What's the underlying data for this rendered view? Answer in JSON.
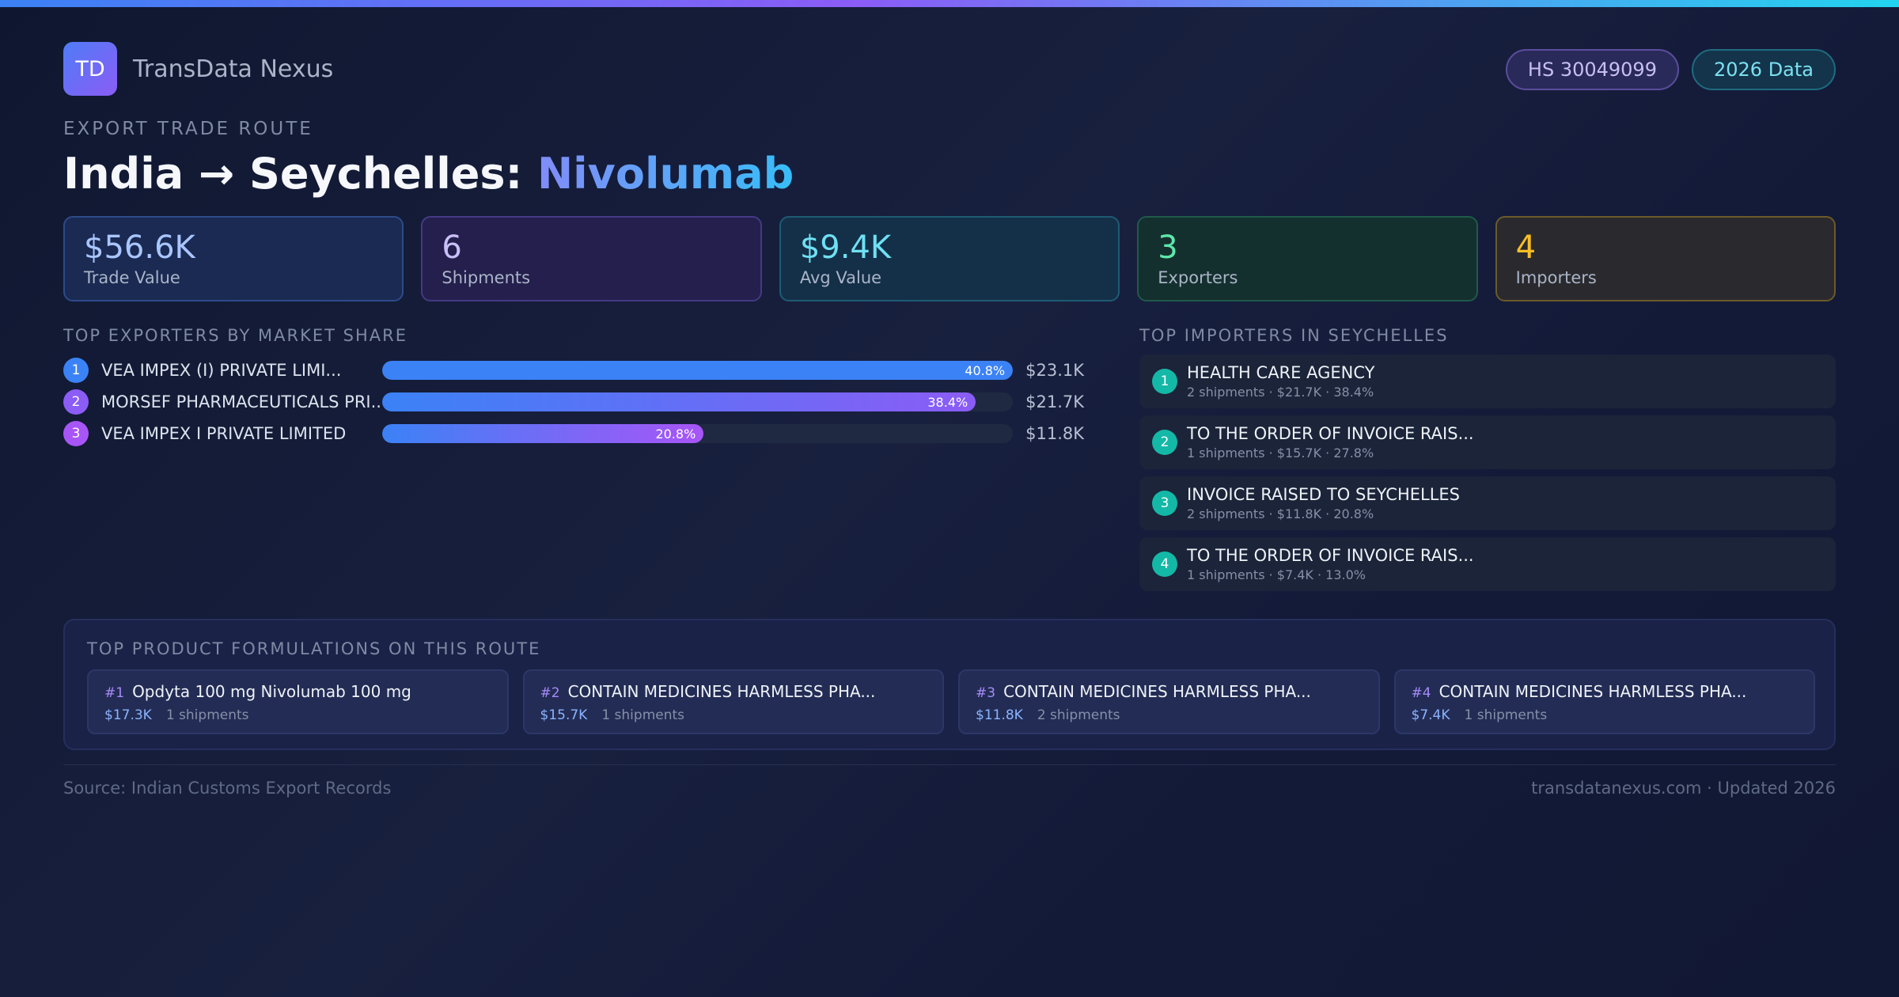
{
  "brand": {
    "logo_text": "TD",
    "name": "TransData Nexus"
  },
  "badges": {
    "hs_code": "HS 30049099",
    "year": "2026 Data"
  },
  "hero": {
    "eyebrow": "EXPORT TRADE ROUTE",
    "route": "India → Seychelles: ",
    "product": "Nivolumab"
  },
  "stats": [
    {
      "value": "$56.6K",
      "label": "Trade Value"
    },
    {
      "value": "6",
      "label": "Shipments"
    },
    {
      "value": "$9.4K",
      "label": "Avg Value"
    },
    {
      "value": "3",
      "label": "Exporters"
    },
    {
      "value": "4",
      "label": "Importers"
    }
  ],
  "exporters": {
    "heading": "TOP EXPORTERS BY MARKET SHARE",
    "items": [
      {
        "rank": "1",
        "name": "VEA IMPEX (I) PRIVATE LIMI...",
        "share": 40.8,
        "share_label": "40.8%",
        "value": "$23.1K",
        "color": "#3b82f6"
      },
      {
        "rank": "2",
        "name": "MORSEF PHARMACEUTICALS PRI...",
        "share": 38.4,
        "share_label": "38.4%",
        "value": "$21.7K",
        "color": "#8b5cf6"
      },
      {
        "rank": "3",
        "name": "VEA IMPEX I PRIVATE LIMITED",
        "share": 20.8,
        "share_label": "20.8%",
        "value": "$11.8K",
        "color": "#a855f7"
      }
    ]
  },
  "importers": {
    "heading": "TOP IMPORTERS IN SEYCHELLES",
    "items": [
      {
        "rank": "1",
        "name": "HEALTH CARE AGENCY",
        "meta": "2 shipments · $21.7K · 38.4%"
      },
      {
        "rank": "2",
        "name": "TO THE ORDER OF INVOICE RAIS...",
        "meta": "1 shipments · $15.7K · 27.8%"
      },
      {
        "rank": "3",
        "name": "INVOICE RAISED TO SEYCHELLES",
        "meta": "2 shipments · $11.8K · 20.8%"
      },
      {
        "rank": "4",
        "name": "TO THE ORDER OF INVOICE RAIS...",
        "meta": "1 shipments · $7.4K · 13.0%"
      }
    ]
  },
  "formulations": {
    "heading": "TOP PRODUCT FORMULATIONS ON THIS ROUTE",
    "items": [
      {
        "num": "#1",
        "name": "Opdyta 100 mg Nivolumab 100 mg",
        "value": "$17.3K",
        "shipments": "1 shipments"
      },
      {
        "num": "#2",
        "name": "CONTAIN MEDICINES HARMLESS PHA...",
        "value": "$15.7K",
        "shipments": "1 shipments"
      },
      {
        "num": "#3",
        "name": "CONTAIN MEDICINES HARMLESS PHA...",
        "value": "$11.8K",
        "shipments": "2 shipments"
      },
      {
        "num": "#4",
        "name": "CONTAIN MEDICINES HARMLESS PHA...",
        "value": "$7.4K",
        "shipments": "1 shipments"
      }
    ]
  },
  "footer": {
    "source": "Source: Indian Customs Export Records",
    "site": "transdatanexus.com · Updated 2026"
  }
}
